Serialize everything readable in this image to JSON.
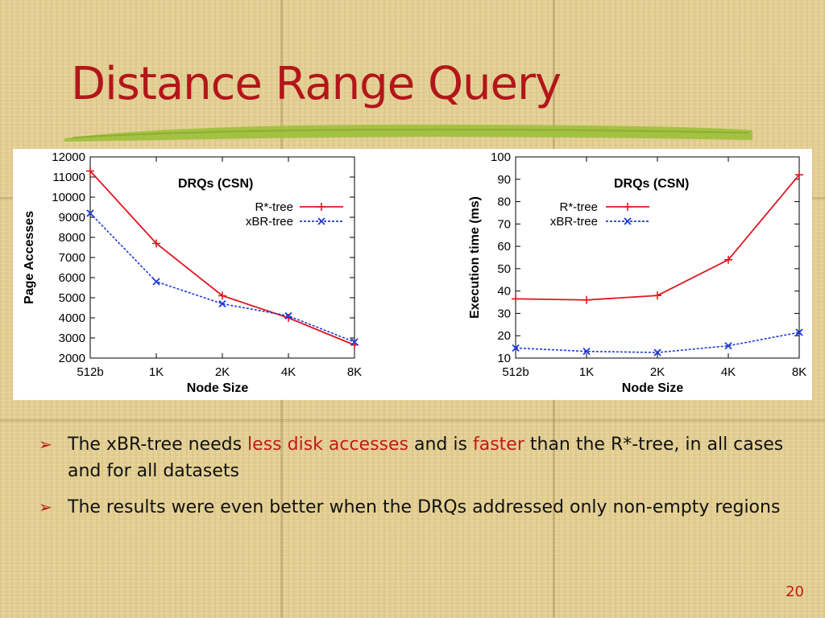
{
  "slide": {
    "title": "Distance Range Query",
    "page_number": "20",
    "accent_color": "#b3161a",
    "stroke_color": "#9cc03a"
  },
  "bullets": [
    {
      "marker": "➢",
      "parts": [
        {
          "text": "The xBR-tree needs ",
          "highlight": false
        },
        {
          "text": "less disk accesses",
          "highlight": true
        },
        {
          "text": " and is ",
          "highlight": false
        },
        {
          "text": "faster",
          "highlight": true
        },
        {
          "text": " than the R*-tree, in all cases and for all datasets",
          "highlight": false
        }
      ]
    },
    {
      "marker": "➢",
      "parts": [
        {
          "text": "The results were even better when the DRQs addressed only non-empty regions",
          "highlight": false
        }
      ]
    }
  ],
  "chart_data": [
    {
      "type": "line",
      "title": "DRQs (CSN)",
      "xlabel": "Node Size",
      "ylabel": "Page Accesses",
      "categories": [
        "512b",
        "1K",
        "2K",
        "4K",
        "8K"
      ],
      "yticks": [
        2000,
        3000,
        4000,
        5000,
        6000,
        7000,
        8000,
        9000,
        10000,
        11000,
        12000
      ],
      "ylim": [
        2000,
        12000
      ],
      "grid": false,
      "legend": "top-right",
      "series": [
        {
          "name": "R*-tree",
          "values": [
            11300,
            7700,
            5100,
            4000,
            2650
          ],
          "color": "#e0161d",
          "marker": "+",
          "dash": "solid"
        },
        {
          "name": "xBR-tree",
          "values": [
            9200,
            5800,
            4700,
            4100,
            2800
          ],
          "color": "#1f3bd6",
          "marker": "x",
          "dash": "dashed"
        }
      ]
    },
    {
      "type": "line",
      "title": "DRQs (CSN)",
      "xlabel": "Node Size",
      "ylabel": "Execution time (ms)",
      "categories": [
        "512b",
        "1K",
        "2K",
        "4K",
        "8K"
      ],
      "yticks": [
        10,
        20,
        30,
        40,
        50,
        60,
        70,
        80,
        90,
        100
      ],
      "ylim": [
        10,
        100
      ],
      "grid": false,
      "legend": "top-left",
      "series": [
        {
          "name": "R*-tree",
          "values": [
            36.5,
            36,
            38,
            54,
            92
          ],
          "color": "#e0161d",
          "marker": "+",
          "dash": "solid"
        },
        {
          "name": "xBR-tree",
          "values": [
            14.5,
            13,
            12.5,
            15.5,
            21.5
          ],
          "color": "#1f3bd6",
          "marker": "x",
          "dash": "dashed"
        }
      ]
    }
  ]
}
